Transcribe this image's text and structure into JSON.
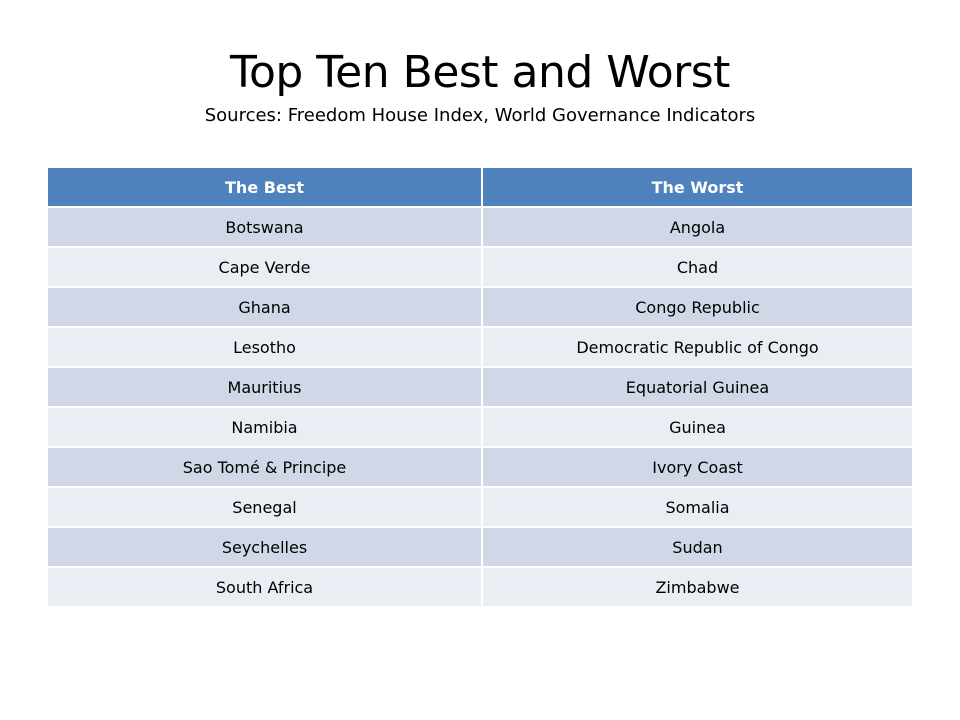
{
  "slide": {
    "title": "Top Ten Best and Worst",
    "subtitle": "Sources: Freedom House Index, World Governance Indicators"
  },
  "table": {
    "headers": [
      "The Best",
      "The Worst"
    ],
    "rows": [
      [
        "Botswana",
        "Angola"
      ],
      [
        "Cape Verde",
        "Chad"
      ],
      [
        "Ghana",
        "Congo Republic"
      ],
      [
        "Lesotho",
        "Democratic Republic of Congo"
      ],
      [
        "Mauritius",
        "Equatorial Guinea"
      ],
      [
        "Namibia",
        "Guinea"
      ],
      [
        "Sao Tomé & Principe",
        "Ivory Coast"
      ],
      [
        "Senegal",
        "Somalia"
      ],
      [
        "Seychelles",
        "Sudan"
      ],
      [
        "South Africa",
        "Zimbabwe"
      ]
    ]
  },
  "colors": {
    "header_fill": "#4f81bd",
    "row_band_dark": "#d0d8e8",
    "row_band_light": "#e9edf4",
    "header_text": "#ffffff",
    "body_text": "#000000"
  }
}
